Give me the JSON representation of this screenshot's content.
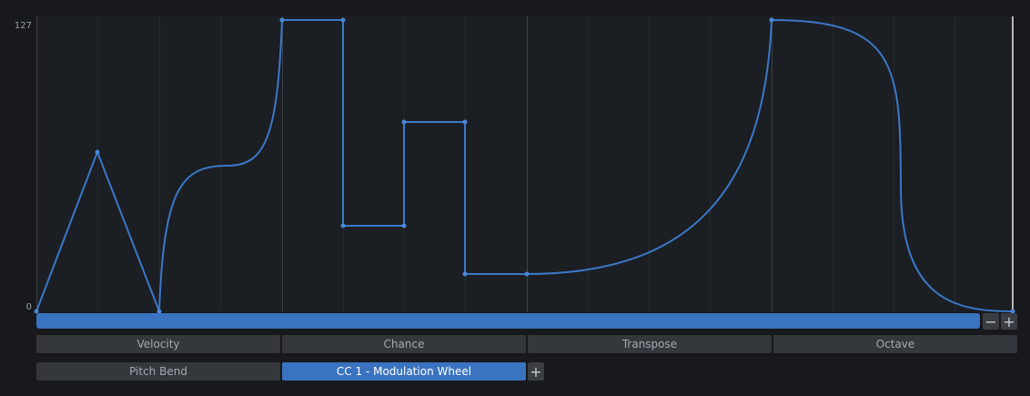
{
  "axis": {
    "max_label": "127",
    "min_label": "0"
  },
  "scroll_buttons": {
    "minus": "−",
    "plus": "+"
  },
  "tabs_row1": [
    "Velocity",
    "Chance",
    "Transpose",
    "Octave"
  ],
  "tabs_row2": {
    "items": [
      "Pitch Bend",
      "CC 1 - Modulation Wheel"
    ],
    "add": "+"
  }
}
